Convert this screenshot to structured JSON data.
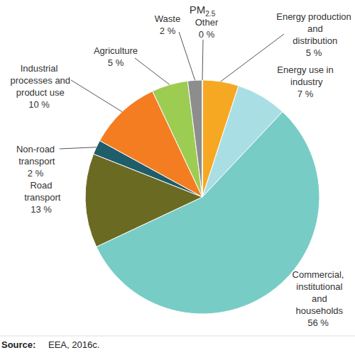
{
  "chart_data": {
    "type": "pie",
    "title": "PM2.5",
    "categories": [
      "Energy production and distribution",
      "Energy use in industry",
      "Commercial, institutional and households",
      "Road transport",
      "Non-road transport",
      "Industrial processes and product use",
      "Agriculture",
      "Waste",
      "Other"
    ],
    "values": [
      5,
      7,
      56,
      13,
      2,
      10,
      5,
      2,
      0
    ],
    "value_labels": [
      "5 %",
      "7 %",
      "56 %",
      "13 %",
      "2 %",
      "10 %",
      "5 %",
      "2 %",
      "0 %"
    ],
    "colors": [
      "#f7a823",
      "#a9dfe4",
      "#78ccc6",
      "#6b6a22",
      "#1f5d6a",
      "#f47d22",
      "#9dcc52",
      "#8d8d8d",
      "#c8c8c8"
    ],
    "data_labels": true,
    "source_label": "Source:",
    "source": "EEA, 2016c."
  }
}
